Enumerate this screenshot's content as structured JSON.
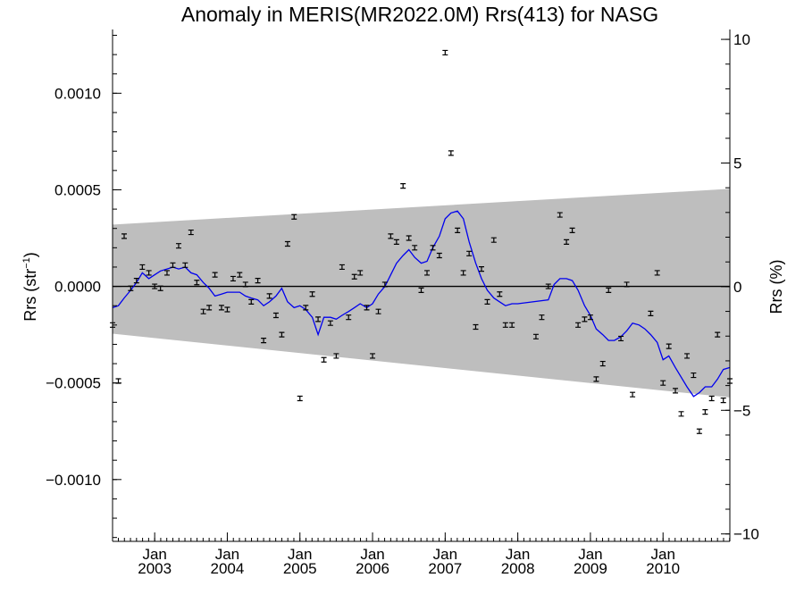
{
  "chart_data": {
    "type": "scatter",
    "title": "Anomaly in MERIS(MR2022.0M) Rrs(413) for NASG",
    "ylabel_left": {
      "base": "Rrs (str",
      "sup": "−1",
      "tail": ")"
    },
    "ylabel_right": "Rrs (%)",
    "xlim": [
      2002.42,
      2010.92
    ],
    "ylim": [
      -0.00132,
      0.00133
    ],
    "ylim_right": [
      -10.3,
      10.4
    ],
    "x_ticks": [
      {
        "x": 2003.0,
        "month": "Jan",
        "year": "2003"
      },
      {
        "x": 2004.0,
        "month": "Jan",
        "year": "2004"
      },
      {
        "x": 2005.0,
        "month": "Jan",
        "year": "2005"
      },
      {
        "x": 2006.0,
        "month": "Jan",
        "year": "2006"
      },
      {
        "x": 2007.0,
        "month": "Jan",
        "year": "2007"
      },
      {
        "x": 2008.0,
        "month": "Jan",
        "year": "2008"
      },
      {
        "x": 2009.0,
        "month": "Jan",
        "year": "2009"
      },
      {
        "x": 2010.0,
        "month": "Jan",
        "year": "2010"
      }
    ],
    "y_ticks_left": [
      {
        "v": 0.001,
        "label": "0.0010"
      },
      {
        "v": 0.0005,
        "label": "0.0005"
      },
      {
        "v": 0.0,
        "label": "0.0000"
      },
      {
        "v": -0.0005,
        "label": "−0.0005"
      },
      {
        "v": -0.001,
        "label": "−0.0010"
      }
    ],
    "y_ticks_right": [
      {
        "v": 10,
        "label": "10"
      },
      {
        "v": 5,
        "label": "5"
      },
      {
        "v": 0,
        "label": "0"
      },
      {
        "v": -5,
        "label": "−5"
      },
      {
        "v": -10,
        "label": "−10"
      }
    ],
    "band": {
      "x": [
        2002.42,
        2010.92
      ],
      "upper": [
        0.00032,
        0.000505
      ],
      "lower": [
        -0.000245,
        -0.000575
      ],
      "color": "#bebebe"
    },
    "zero_line": true,
    "series": [
      {
        "kind": "points_errorbars",
        "color": "#000000",
        "points": [
          [
            2002.42,
            -0.0002
          ],
          [
            2002.5,
            -0.00049
          ],
          [
            2002.58,
            0.00026
          ],
          [
            2002.67,
            -1e-05
          ],
          [
            2002.75,
            3e-05
          ],
          [
            2002.83,
            0.0001
          ],
          [
            2002.92,
            7e-05
          ],
          [
            2003.0,
            0.0
          ],
          [
            2003.08,
            -1e-05
          ],
          [
            2003.17,
            7e-05
          ],
          [
            2003.25,
            0.00011
          ],
          [
            2003.33,
            0.00021
          ],
          [
            2003.42,
            0.00011
          ],
          [
            2003.5,
            0.00028
          ],
          [
            2003.58,
            2e-05
          ],
          [
            2003.67,
            -0.00013
          ],
          [
            2003.75,
            -0.00011
          ],
          [
            2003.83,
            6e-05
          ],
          [
            2003.92,
            -0.00011
          ],
          [
            2004.0,
            -0.00012
          ],
          [
            2004.08,
            4e-05
          ],
          [
            2004.17,
            6e-05
          ],
          [
            2004.25,
            1e-05
          ],
          [
            2004.33,
            -8e-05
          ],
          [
            2004.42,
            3e-05
          ],
          [
            2004.5,
            -0.00028
          ],
          [
            2004.58,
            -5e-05
          ],
          [
            2004.67,
            -0.00015
          ],
          [
            2004.75,
            -0.00025
          ],
          [
            2004.83,
            0.00022
          ],
          [
            2004.92,
            0.00036
          ],
          [
            2005.0,
            -0.00058
          ],
          [
            2005.08,
            -0.00011
          ],
          [
            2005.17,
            -4e-05
          ],
          [
            2005.25,
            -0.00017
          ],
          [
            2005.33,
            -0.00038
          ],
          [
            2005.42,
            -0.00019
          ],
          [
            2005.5,
            -0.00036
          ],
          [
            2005.58,
            0.0001
          ],
          [
            2005.67,
            -0.00016
          ],
          [
            2005.75,
            5e-05
          ],
          [
            2005.83,
            7e-05
          ],
          [
            2005.92,
            -0.00011
          ],
          [
            2006.0,
            -0.00036
          ],
          [
            2006.08,
            -0.00013
          ],
          [
            2006.17,
            1e-05
          ],
          [
            2006.25,
            0.00026
          ],
          [
            2006.33,
            0.00023
          ],
          [
            2006.42,
            0.00052
          ],
          [
            2006.5,
            0.00025
          ],
          [
            2006.58,
            0.0002
          ],
          [
            2006.67,
            -2e-05
          ],
          [
            2006.75,
            7e-05
          ],
          [
            2006.83,
            0.0002
          ],
          [
            2006.92,
            0.00016
          ],
          [
            2007.0,
            0.00121
          ],
          [
            2007.08,
            0.00069
          ],
          [
            2007.17,
            0.00029
          ],
          [
            2007.25,
            7e-05
          ],
          [
            2007.33,
            0.00017
          ],
          [
            2007.42,
            -0.00021
          ],
          [
            2007.5,
            9e-05
          ],
          [
            2007.58,
            -8e-05
          ],
          [
            2007.67,
            0.00024
          ],
          [
            2007.75,
            -4e-05
          ],
          [
            2007.83,
            -0.0002
          ],
          [
            2007.92,
            -0.0002
          ],
          [
            2008.25,
            -0.00026
          ],
          [
            2008.33,
            -0.00016
          ],
          [
            2008.42,
            0.0
          ],
          [
            2008.58,
            0.00037
          ],
          [
            2008.67,
            0.00023
          ],
          [
            2008.75,
            0.00029
          ],
          [
            2008.83,
            -0.0002
          ],
          [
            2008.92,
            -0.00017
          ],
          [
            2009.0,
            -0.00016
          ],
          [
            2009.08,
            -0.00048
          ],
          [
            2009.17,
            -0.0004
          ],
          [
            2009.25,
            -2e-05
          ],
          [
            2009.42,
            -0.00027
          ],
          [
            2009.5,
            1e-05
          ],
          [
            2009.58,
            -0.00056
          ],
          [
            2009.83,
            -0.00014
          ],
          [
            2009.92,
            7e-05
          ],
          [
            2010.0,
            -0.0005
          ],
          [
            2010.08,
            -0.00031
          ],
          [
            2010.17,
            -0.00054
          ],
          [
            2010.25,
            -0.00066
          ],
          [
            2010.33,
            -0.00036
          ],
          [
            2010.42,
            -0.00046
          ],
          [
            2010.5,
            -0.00075
          ],
          [
            2010.58,
            -0.00065
          ],
          [
            2010.67,
            -0.00058
          ],
          [
            2010.75,
            -0.00025
          ],
          [
            2010.83,
            -0.00059
          ],
          [
            2010.92,
            -0.00049
          ]
        ]
      },
      {
        "kind": "line",
        "color": "#0000ee",
        "x": [
          2002.42,
          2002.5,
          2002.58,
          2002.67,
          2002.75,
          2002.83,
          2002.92,
          2003.0,
          2003.08,
          2003.17,
          2003.25,
          2003.33,
          2003.42,
          2003.5,
          2003.58,
          2003.67,
          2003.75,
          2003.83,
          2003.92,
          2004.0,
          2004.08,
          2004.17,
          2004.25,
          2004.33,
          2004.42,
          2004.5,
          2004.58,
          2004.67,
          2004.75,
          2004.83,
          2004.92,
          2005.0,
          2005.08,
          2005.17,
          2005.25,
          2005.33,
          2005.42,
          2005.5,
          2005.58,
          2005.67,
          2005.75,
          2005.83,
          2005.92,
          2006.0,
          2006.08,
          2006.17,
          2006.25,
          2006.33,
          2006.42,
          2006.5,
          2006.58,
          2006.67,
          2006.75,
          2006.83,
          2006.92,
          2007.0,
          2007.08,
          2007.17,
          2007.25,
          2007.33,
          2007.42,
          2007.5,
          2007.58,
          2007.67,
          2007.75,
          2007.83,
          2007.92,
          2008.0,
          2008.42,
          2008.5,
          2008.58,
          2008.67,
          2008.75,
          2008.83,
          2008.92,
          2009.0,
          2009.08,
          2009.17,
          2009.25,
          2009.33,
          2009.42,
          2009.5,
          2009.58,
          2009.67,
          2009.75,
          2009.83,
          2009.92,
          2010.0,
          2010.08,
          2010.17,
          2010.25,
          2010.33,
          2010.42,
          2010.5,
          2010.58,
          2010.67,
          2010.75,
          2010.83,
          2010.92
        ],
        "y": [
          -0.00011,
          -0.0001,
          -6e-05,
          -2e-05,
          2e-05,
          7e-05,
          4e-05,
          6e-05,
          8e-05,
          9e-05,
          0.0001,
          9e-05,
          0.0001,
          7e-05,
          6e-05,
          2e-05,
          -1e-05,
          -5e-05,
          -4e-05,
          -3e-05,
          -3e-05,
          -3e-05,
          -5e-05,
          -6e-05,
          -7e-05,
          -0.0001,
          -8e-05,
          -5e-05,
          -1e-05,
          -8e-05,
          -0.00011,
          -0.0001,
          -0.00012,
          -0.00016,
          -0.00025,
          -0.00016,
          -0.00016,
          -0.00017,
          -0.00015,
          -0.00013,
          -0.00011,
          -9e-05,
          -0.00011,
          -9e-05,
          -4e-05,
          0.0,
          6e-05,
          0.00012,
          0.00016,
          0.00019,
          0.00015,
          0.00012,
          0.00013,
          0.0002,
          0.00026,
          0.00035,
          0.00038,
          0.00039,
          0.00035,
          0.00023,
          0.00012,
          4e-05,
          -2e-05,
          -6e-05,
          -8e-05,
          -0.0001,
          -9e-05,
          -9e-05,
          -7e-05,
          1e-05,
          4e-05,
          4e-05,
          3e-05,
          -2e-05,
          -0.0001,
          -0.00015,
          -0.00022,
          -0.00025,
          -0.00028,
          -0.00028,
          -0.00026,
          -0.00023,
          -0.00019,
          -0.0002,
          -0.00022,
          -0.00025,
          -0.00029,
          -0.00038,
          -0.00036,
          -0.00042,
          -0.00047,
          -0.00052,
          -0.00057,
          -0.00055,
          -0.00052,
          -0.00052,
          -0.00048,
          -0.00043,
          -0.00042
        ]
      }
    ]
  }
}
